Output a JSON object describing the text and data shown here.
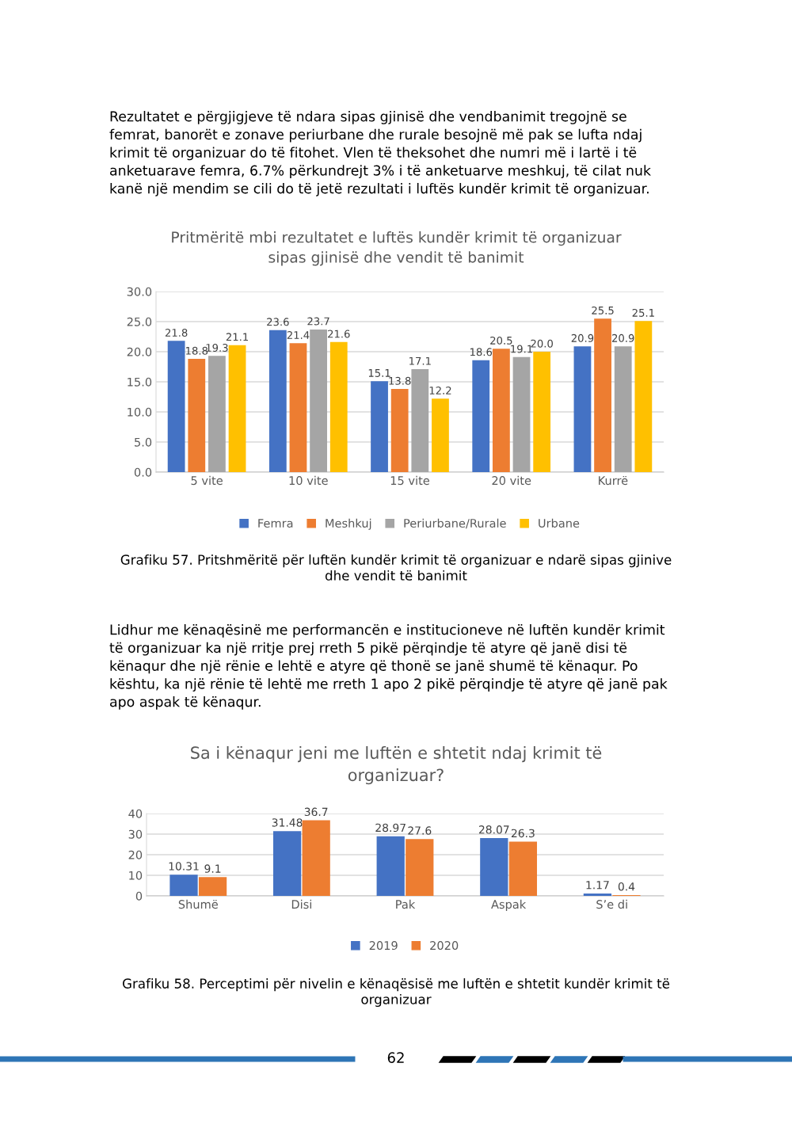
{
  "chart_data": [
    {
      "type": "bar",
      "title": "Pritmëritë mbi rezultatet e luftës kundër krimit të organizuar sipas gjinisë dhe vendit të banimit",
      "categories": [
        "5 vite",
        "10 vite",
        "15 vite",
        "20 vite",
        "Kurrë"
      ],
      "series": [
        {
          "name": "Femra",
          "color": "#4472c4",
          "values": [
            21.8,
            23.6,
            15.1,
            18.6,
            20.9
          ],
          "value_labels": [
            "21.8",
            "23.6",
            "15.1",
            "18.6",
            "20.9"
          ]
        },
        {
          "name": "Meshkuj",
          "color": "#ed7d31",
          "values": [
            18.8,
            21.4,
            13.8,
            20.5,
            25.5
          ],
          "value_labels": [
            "18.8",
            "21.4",
            "13.8",
            "20.5",
            "25.5"
          ]
        },
        {
          "name": "Periurbane/Rurale",
          "color": "#a5a5a5",
          "values": [
            19.3,
            23.7,
            17.1,
            19.1,
            20.9
          ],
          "value_labels": [
            "19.3",
            "23.7",
            "17.1",
            "19.1",
            "20.9"
          ]
        },
        {
          "name": "Urbane",
          "color": "#ffc000",
          "values": [
            21.1,
            21.6,
            12.2,
            20.0,
            25.1
          ],
          "value_labels": [
            "21.1",
            "21.6",
            "12.2",
            "20.0",
            "25.1"
          ]
        }
      ],
      "ylim": [
        0,
        30
      ],
      "yticks": [
        {
          "value": 0,
          "label": "0.0"
        },
        {
          "value": 5,
          "label": "5.0"
        },
        {
          "value": 10,
          "label": "10.0"
        },
        {
          "value": 15,
          "label": "15.0"
        },
        {
          "value": 20,
          "label": "20.0"
        },
        {
          "value": 25,
          "label": "25.0"
        },
        {
          "value": 30,
          "label": "30.0"
        }
      ],
      "grid": "y",
      "legend": "bottom",
      "annotations": [
        "Rezultatet e përgjigjeve të ndara sipas gjinisë dhe vendbanimit tregojnë se femrat, banorët e zonave periurbane dhe rurale besojnë më pak se lufta ndaj krimit të organizuar do të fitohet. Vlen të theksohet dhe numri më i lartë i të anketuarave femra, 6.7% përkundrejt 3% i të anketuarve meshkuj, të cilat nuk kanë një mendim se cili do të jetë rezultati i luftës kundër krimit të organizuar.",
        "Grafiku 57. Pritshmëritë për luftën kundër krimit të organizuar e ndarë sipas gjinive dhe vendit të banimit"
      ]
    },
    {
      "type": "bar",
      "title": "Sa i kënaqur jeni me luftën e shtetit ndaj krimit të organizuar?",
      "categories": [
        "Shumë",
        "Disi",
        "Pak",
        "Aspak",
        "S’e di"
      ],
      "series": [
        {
          "name": "2019",
          "color": "#4472c4",
          "values": [
            10.31,
            31.48,
            28.97,
            28.07,
            1.17
          ],
          "value_labels": [
            "10.31",
            "31.48",
            "28.97",
            "28.07",
            "1.17"
          ]
        },
        {
          "name": "2020",
          "color": "#ed7d31",
          "values": [
            9.1,
            36.7,
            27.6,
            26.3,
            0.4
          ],
          "value_labels": [
            "9.1",
            "36.7",
            "27.6",
            "26.3",
            "0.4"
          ]
        }
      ],
      "ylim": [
        0,
        40
      ],
      "yticks": [
        0,
        10,
        20,
        30,
        40
      ],
      "grid": "y",
      "legend": "bottom",
      "annotations": [
        "Lidhur me kënaqësinë me performancën e institucioneve në luftën kundër krimit të organizuar ka një rritje prej rreth 5 pikë përqindje të atyre që janë disi të kënaqur dhe një rënie e lehtë e atyre që thonë se janë shumë të kënaqur. Po kështu, ka një rënie të lehtë me rreth 1 apo 2 pikë përqindje të atyre që janë pak apo aspak të kënaqur.",
        "Grafiku 58. Perceptimi për nivelin e kënaqësisë me luftën e shtetit kundër krimit të organizuar",
        "62"
      ]
    }
  ]
}
